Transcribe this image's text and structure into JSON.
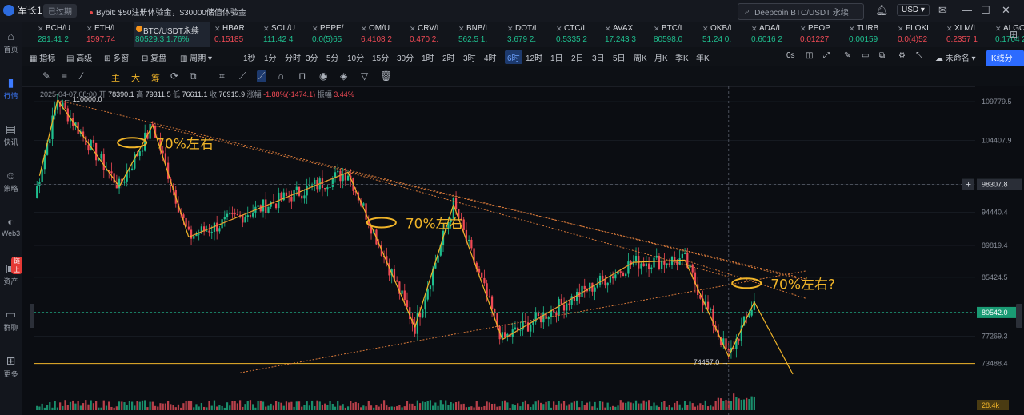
{
  "header": {
    "user": "军长1",
    "expired": "已过期",
    "promo": "Bybit: $50注册体验金，$30000储值体验金",
    "search_placeholder": "Deepcoin BTC/USDT 永续",
    "currency": "USD"
  },
  "sidebar": [
    {
      "label": "首页",
      "icon": "home-icon"
    },
    {
      "label": "行情",
      "icon": "chart-icon",
      "active": true
    },
    {
      "label": "快讯",
      "icon": "news-icon"
    },
    {
      "label": "策略",
      "icon": "robot-icon"
    },
    {
      "label": "Web3",
      "icon": "web3-icon"
    },
    {
      "label": "资产",
      "icon": "wallet-icon",
      "badge": "链上"
    },
    {
      "label": "群聊",
      "icon": "chat-icon"
    },
    {
      "label": "更多",
      "icon": "grid-icon"
    }
  ],
  "tickers": [
    {
      "name": "BCH/U",
      "price": "281.41 2",
      "dir": "up"
    },
    {
      "name": "ETH/L",
      "price": "1597.74",
      "dir": "dn"
    },
    {
      "name": "BTC/USDT永续",
      "price": "80529.3 1.76%",
      "dir": "up",
      "active": true
    },
    {
      "name": "HBAR",
      "price": "0.15185",
      "dir": "dn"
    },
    {
      "name": "SOL/U",
      "price": "111.42 4",
      "dir": "up"
    },
    {
      "name": "PEPE/",
      "price": "0.0(5)65",
      "dir": "up"
    },
    {
      "name": "OM/U",
      "price": "6.4108 2",
      "dir": "dn"
    },
    {
      "name": "CRV/L",
      "price": "0.470 2.",
      "dir": "dn"
    },
    {
      "name": "BNB/L",
      "price": "562.5 1.",
      "dir": "up"
    },
    {
      "name": "DOT/L",
      "price": "3.679 2.",
      "dir": "up"
    },
    {
      "name": "CTC/L",
      "price": "0.5335 2",
      "dir": "up"
    },
    {
      "name": "AVAX",
      "price": "17.243 3",
      "dir": "up"
    },
    {
      "name": "BTC/L",
      "price": "80598.0",
      "dir": "up"
    },
    {
      "name": "OKB/L",
      "price": "51.24 0.",
      "dir": "up"
    },
    {
      "name": "ADA/L",
      "price": "0.6016 2",
      "dir": "up"
    },
    {
      "name": "PEOP",
      "price": "0.01227",
      "dir": "dn"
    },
    {
      "name": "TURB",
      "price": "0.00159",
      "dir": "up"
    },
    {
      "name": "FLOKI",
      "price": "0.0(4)52",
      "dir": "dn"
    },
    {
      "name": "XLM/L",
      "price": "0.2357 1",
      "dir": "dn"
    },
    {
      "name": "ALGO",
      "price": "0.1704 2",
      "dir": "up"
    }
  ],
  "toolbar": {
    "indicator": "指标",
    "advanced": "高级",
    "multi_window": "多窗",
    "replay": "复盘",
    "period": "周期",
    "intervals": [
      "1秒",
      "1分",
      "分时",
      "3分",
      "5分",
      "10分",
      "15分",
      "30分",
      "1时",
      "2时",
      "3时",
      "4时",
      "6时",
      "12时",
      "1日",
      "2日",
      "3日",
      "5日",
      "周K",
      "月K",
      "季K",
      "年K"
    ],
    "selected_interval": "6时",
    "right_time": "0s",
    "unnamed": "未命名",
    "kline_analysis": "K线分析"
  },
  "drawing_tools": {
    "labels": [
      "主",
      "大",
      "筹"
    ]
  },
  "info_bar": {
    "date": "2025-04-07 08:00",
    "open_label": "开",
    "open": "78390.1",
    "high_label": "高",
    "high": "79311.5",
    "low_label": "低",
    "low": "76611.1",
    "close_label": "收",
    "close": "76915.9",
    "change_label": "涨幅",
    "change": "-1.88%(-1474.1)",
    "amp_label": "振幅",
    "amp": "3.44%"
  },
  "chart_data": {
    "type": "candlestick",
    "y_ticks": [
      109779.5,
      104407.9,
      98307.8,
      94440.4,
      89819.4,
      85424.5,
      80542.0,
      77269.3,
      73488.4
    ],
    "ylim": [
      72000,
      111000
    ],
    "current_price_label": "80542.0",
    "crosshair_label": "98307.8",
    "volume_label": "28.4k",
    "high_annotation": "110000.0",
    "low_annotation": "74457.0",
    "annotations": [
      "70%左右",
      "70%左右",
      "70%左右?"
    ],
    "support_level": 73488.4,
    "swing_points": [
      {
        "bar": 2,
        "price": 99500
      },
      {
        "bar": 9,
        "price": 110000
      },
      {
        "bar": 33,
        "price": 98000
      },
      {
        "bar": 46,
        "price": 106500
      },
      {
        "bar": 60,
        "price": 91000
      },
      {
        "bar": 122,
        "price": 100000
      },
      {
        "bar": 148,
        "price": 78500
      },
      {
        "bar": 163,
        "price": 95500
      },
      {
        "bar": 182,
        "price": 76800
      },
      {
        "bar": 233,
        "price": 87500
      },
      {
        "bar": 253,
        "price": 87800
      },
      {
        "bar": 270,
        "price": 74457
      },
      {
        "bar": 280,
        "price": 82000
      },
      {
        "bar": 295,
        "price": 72000
      }
    ]
  }
}
